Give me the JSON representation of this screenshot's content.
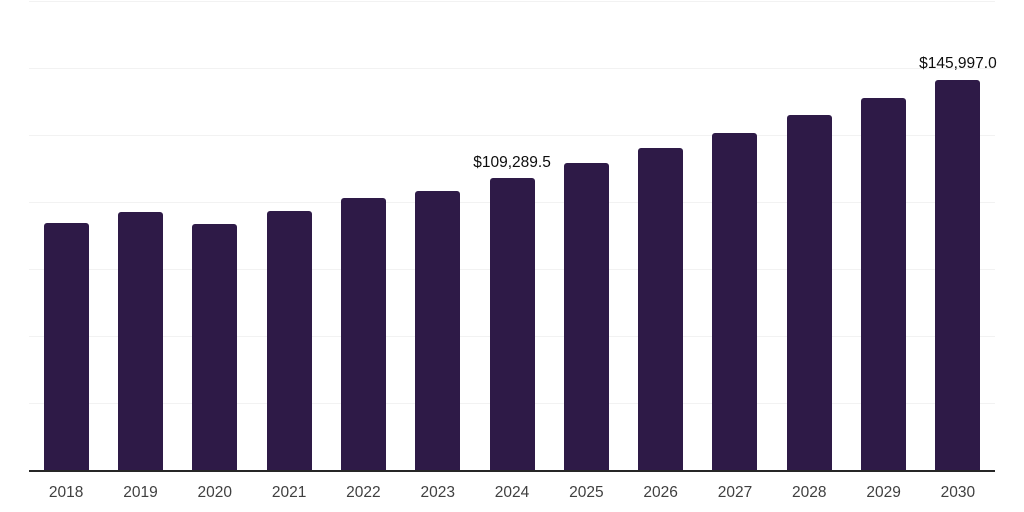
{
  "chart_data": {
    "type": "bar",
    "categories": [
      "2018",
      "2019",
      "2020",
      "2021",
      "2022",
      "2023",
      "2024",
      "2025",
      "2026",
      "2027",
      "2028",
      "2029",
      "2030"
    ],
    "values": [
      92500,
      96500,
      92100,
      97000,
      101800,
      104500,
      109289.5,
      114900,
      120500,
      126100,
      132800,
      139200,
      145997
    ],
    "value_labels": {
      "2024": "$109,289.5",
      "2030": "$145,997.0"
    },
    "xlabel": "",
    "ylabel": "",
    "ylim": [
      0,
      175000
    ],
    "gridline_step": 25000,
    "grid": "horizontal",
    "legend": "none",
    "y_axis_tick_labels_visible": false,
    "colors": {
      "bar": "#2E1A47",
      "axis_line": "#262626",
      "gridline": "#f2f2f2",
      "tick_label": "#404040",
      "data_label": "#0d0d0d",
      "background": "#ffffff"
    }
  }
}
